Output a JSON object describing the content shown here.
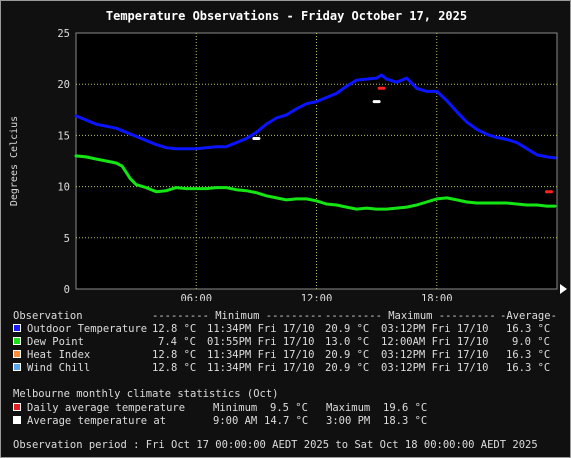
{
  "chart_data": {
    "type": "line",
    "title": "Temperature Observations - Friday October 17, 2025",
    "ylabel": "Degrees Celcius",
    "xlabel": "",
    "ylim": [
      0,
      25
    ],
    "xlim": [
      0,
      24
    ],
    "yticks": [
      0,
      5,
      10,
      15,
      20,
      25
    ],
    "xticks": [
      {
        "x": 6,
        "label": "06:00"
      },
      {
        "x": 12,
        "label": "12:00"
      },
      {
        "x": 18,
        "label": "18:00"
      }
    ],
    "grid": true,
    "series": [
      {
        "name": "Outdoor Temperature",
        "color": "#0a14ff",
        "x": [
          0,
          0.5,
          1,
          1.5,
          2,
          2.5,
          3,
          3.5,
          4,
          4.5,
          5,
          5.5,
          6,
          6.5,
          7,
          7.5,
          8,
          8.5,
          9,
          9.5,
          10,
          10.5,
          11,
          11.5,
          12,
          12.5,
          13,
          13.5,
          14,
          14.5,
          15,
          15.25,
          15.5,
          16,
          16.5,
          17,
          17.5,
          18,
          18.5,
          19,
          19.5,
          20,
          20.5,
          21,
          21.5,
          22,
          22.5,
          23,
          23.5,
          23.9
        ],
        "y": [
          16.9,
          16.5,
          16.1,
          15.9,
          15.7,
          15.3,
          14.9,
          14.5,
          14.1,
          13.8,
          13.7,
          13.7,
          13.7,
          13.8,
          13.9,
          13.9,
          14.3,
          14.7,
          15.3,
          16.1,
          16.7,
          17.0,
          17.6,
          18.1,
          18.3,
          18.7,
          19.1,
          19.8,
          20.4,
          20.5,
          20.6,
          20.9,
          20.5,
          20.2,
          20.6,
          19.6,
          19.3,
          19.3,
          18.4,
          17.3,
          16.3,
          15.6,
          15.1,
          14.8,
          14.6,
          14.3,
          13.7,
          13.1,
          12.9,
          12.8
        ]
      },
      {
        "name": "Dew Point",
        "color": "#14e614",
        "x": [
          0,
          0.5,
          1,
          1.5,
          2,
          2.3,
          2.7,
          3,
          3.5,
          4,
          4.5,
          5,
          5.5,
          6,
          6.5,
          7,
          7.5,
          8,
          8.5,
          9,
          9.5,
          10,
          10.5,
          11,
          11.5,
          12,
          12.5,
          13,
          13.5,
          14,
          14.5,
          15,
          15.5,
          16,
          16.5,
          17,
          17.5,
          18,
          18.5,
          19,
          19.5,
          20,
          20.5,
          21,
          21.5,
          22,
          22.5,
          23,
          23.5,
          23.9
        ],
        "y": [
          13.0,
          12.9,
          12.7,
          12.5,
          12.3,
          12.0,
          10.8,
          10.2,
          9.9,
          9.5,
          9.6,
          9.9,
          9.8,
          9.8,
          9.8,
          9.9,
          9.9,
          9.7,
          9.6,
          9.4,
          9.1,
          8.9,
          8.7,
          8.8,
          8.8,
          8.6,
          8.3,
          8.2,
          8.0,
          7.8,
          7.9,
          7.8,
          7.8,
          7.9,
          8.0,
          8.2,
          8.5,
          8.8,
          8.9,
          8.7,
          8.5,
          8.4,
          8.4,
          8.4,
          8.4,
          8.3,
          8.2,
          8.2,
          8.1,
          8.1
        ]
      }
    ],
    "markers": [
      {
        "name": "Daily average temperature minimum",
        "x": 23.6,
        "y": 9.5,
        "color": "#ff2020"
      },
      {
        "name": "Daily average temperature maximum",
        "x": 15.25,
        "y": 19.6,
        "color": "#ff2020"
      },
      {
        "name": "Average temperature at 9:00 AM",
        "x": 9.0,
        "y": 14.7,
        "color": "#ffffff"
      },
      {
        "name": "Average temperature at 3:00 PM",
        "x": 15.0,
        "y": 18.3,
        "color": "#ffffff"
      }
    ]
  },
  "summary": {
    "header": {
      "observation": "Observation",
      "minimum": "--------- Minimum ---------",
      "maximum": "--------- Maximum ---------",
      "average": "-Average-"
    },
    "rows": [
      {
        "label": "Outdoor Temperature",
        "color": "#1a1aff",
        "min_val": "12.8 °C",
        "min_time": "11:34PM Fri 17/10",
        "max_val": "20.9 °C",
        "max_time": "03:12PM Fri 17/10",
        "avg": "16.3 °C"
      },
      {
        "label": "Dew Point",
        "color": "#1ae01a",
        "min_val": "7.4 °C",
        "min_time": "01:55PM Fri 17/10",
        "max_val": "13.0 °C",
        "max_time": "12:00AM Fri 17/10",
        "avg": "9.0 °C"
      },
      {
        "label": "Heat Index",
        "color": "#ff8c3a",
        "min_val": "12.8 °C",
        "min_time": "11:34PM Fri 17/10",
        "max_val": "20.9 °C",
        "max_time": "03:12PM Fri 17/10",
        "avg": "16.3 °C"
      },
      {
        "label": "Wind Chill",
        "color": "#58a8f0",
        "min_val": "12.8 °C",
        "min_time": "11:34PM Fri 17/10",
        "max_val": "20.9 °C",
        "max_time": "03:12PM Fri 17/10",
        "avg": "16.3 °C"
      }
    ]
  },
  "climate": {
    "heading": "Melbourne monthly climate statistics (Oct)",
    "daily_label": "Daily average temperature",
    "daily_color": "#e02020",
    "minimum_label": "Minimum",
    "minimum_value": "9.5 °C",
    "maximum_label": "Maximum",
    "maximum_value": "19.6 °C",
    "avg_label": "Average temperature at",
    "avg_color": "#ffffff",
    "time1": "9:00 AM",
    "value1": "14.7 °C",
    "time2": "3:00 PM",
    "value2": "18.3 °C"
  },
  "period": "Observation period : Fri Oct 17 00:00:00 AEDT 2025 to Sat Oct 18 00:00:00 AEDT 2025"
}
